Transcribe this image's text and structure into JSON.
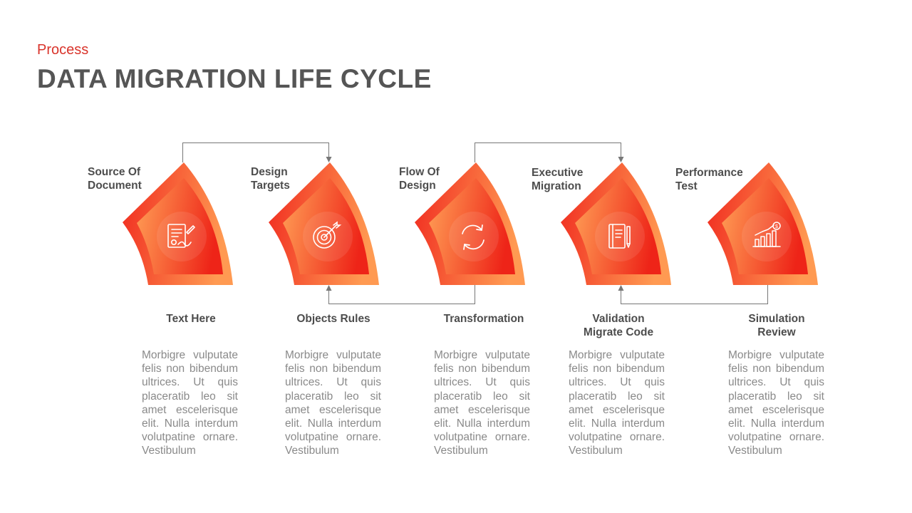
{
  "header": {
    "subtitle": "Process",
    "title": "DATA MIGRATION LIFE CYCLE"
  },
  "colors": {
    "accent": "#d9342b",
    "shape_outer_dark": "#f02a1f",
    "shape_outer_light": "#ff9a52",
    "shape_inner_light": "#ffa056",
    "shape_inner_dark": "#ee2418",
    "connector": "#777777"
  },
  "steps": [
    {
      "top_label": "Source Of\nDocument",
      "icon": "document-signature-icon",
      "bottom_label": "Text Here",
      "description": "Morbigre vulputate felis non bibendum ultrices. Ut quis placeratib leo sit amet escelerisque elit. Nulla interdum volutpatine ornare. Vestibulum"
    },
    {
      "top_label": "Design\nTargets",
      "icon": "target-icon",
      "bottom_label": "Objects Rules",
      "description": "Morbigre vulputate felis non bibendum ultrices. Ut quis placeratib leo sit amet escelerisque elit. Nulla interdum volutpatine ornare. Vestibulum"
    },
    {
      "top_label": "Flow Of\nDesign",
      "icon": "refresh-icon",
      "bottom_label": "Transformation",
      "description": "Morbigre vulputate felis non bibendum ultrices. Ut quis placeratib leo sit amet escelerisque elit. Nulla interdum volutpatine ornare. Vestibulum"
    },
    {
      "top_label": "Executive\nMigration",
      "icon": "notebook-pen-icon",
      "bottom_label": "Validation\nMigrate Code",
      "description": "Morbigre vulputate felis non bibendum ultrices. Ut quis placeratib leo sit amet escelerisque elit. Nulla interdum volutpatine ornare. Vestibulum"
    },
    {
      "top_label": "Performance\nTest",
      "icon": "growth-chart-icon",
      "bottom_label": "Simulation\nReview",
      "description": "Morbigre vulputate felis non bibendum ultrices. Ut quis placeratib leo sit amet escelerisque elit. Nulla interdum volutpatine ornare. Vestibulum"
    }
  ]
}
